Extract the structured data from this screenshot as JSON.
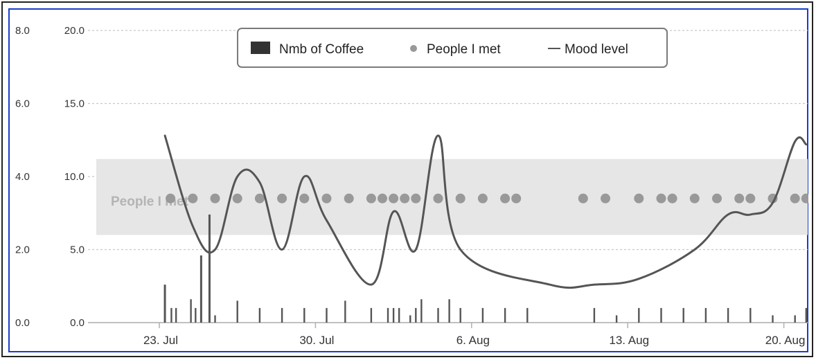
{
  "chart_data": {
    "type": "line",
    "title": "",
    "xlabel": "",
    "ylabel": "",
    "x_axis": {
      "type": "datetime",
      "range": [
        "2013-07-20",
        "2013-08-21"
      ],
      "tick_labels": [
        "23. Jul",
        "30. Jul",
        "6. Aug",
        "13. Aug",
        "20. Aug"
      ],
      "tick_dates": [
        "2013-07-23",
        "2013-07-30",
        "2013-08-06",
        "2013-08-13",
        "2013-08-20"
      ]
    },
    "y_axes": [
      {
        "id": "outer",
        "ticks": [
          "8.0",
          "6.0",
          "4.0",
          "2.0",
          "0.0"
        ],
        "range": [
          0,
          8
        ]
      },
      {
        "id": "inner",
        "ticks": [
          "20.0",
          "15.0",
          "10.0",
          "5.0",
          "0.0"
        ],
        "range": [
          0,
          20
        ]
      }
    ],
    "grid": true,
    "legend": {
      "placement": "top-center",
      "entries": [
        "Nmb of Coffee",
        "People I met",
        "Mood level"
      ]
    },
    "plot_band": {
      "label": "People I met",
      "from": 6,
      "to": 11.2
    },
    "colors": {
      "coffee": "#444444",
      "people": "#999999",
      "mood": "#555555",
      "band": "#e6e6e6",
      "frame": "#1a3cc8"
    },
    "series": [
      {
        "name": "Nmb of Coffee",
        "type": "column",
        "points": [
          [
            "2013-07-23T06:00",
            2.6
          ],
          [
            "2013-07-23T13:00",
            1.0
          ],
          [
            "2013-07-23T18:00",
            1.0
          ],
          [
            "2013-07-24T10:00",
            1.6
          ],
          [
            "2013-07-24T15:00",
            1.0
          ],
          [
            "2013-07-24T21:00",
            4.6
          ],
          [
            "2013-07-25T06:00",
            7.4
          ],
          [
            "2013-07-25T12:00",
            0.5
          ],
          [
            "2013-07-26T12:00",
            1.5
          ],
          [
            "2013-07-27T12:00",
            1.0
          ],
          [
            "2013-07-28T12:00",
            1.0
          ],
          [
            "2013-07-29T12:00",
            1.0
          ],
          [
            "2013-07-30T12:00",
            1.0
          ],
          [
            "2013-07-31T08:00",
            1.5
          ],
          [
            "2013-08-01T12:00",
            1.0
          ],
          [
            "2013-08-02T06:00",
            1.0
          ],
          [
            "2013-08-02T12:00",
            1.0
          ],
          [
            "2013-08-02T18:00",
            1.0
          ],
          [
            "2013-08-03T06:00",
            0.5
          ],
          [
            "2013-08-03T12:00",
            1.0
          ],
          [
            "2013-08-03T18:00",
            1.6
          ],
          [
            "2013-08-04T12:00",
            1.0
          ],
          [
            "2013-08-05T00:00",
            1.6
          ],
          [
            "2013-08-05T12:00",
            1.0
          ],
          [
            "2013-08-06T12:00",
            1.0
          ],
          [
            "2013-08-07T12:00",
            1.0
          ],
          [
            "2013-08-08T12:00",
            1.0
          ],
          [
            "2013-08-11T12:00",
            1.0
          ],
          [
            "2013-08-12T12:00",
            0.5
          ],
          [
            "2013-08-13T12:00",
            1.0
          ],
          [
            "2013-08-14T12:00",
            1.0
          ],
          [
            "2013-08-15T12:00",
            1.0
          ],
          [
            "2013-08-16T12:00",
            1.0
          ],
          [
            "2013-08-17T12:00",
            1.0
          ],
          [
            "2013-08-18T12:00",
            1.0
          ],
          [
            "2013-08-19T12:00",
            0.5
          ],
          [
            "2013-08-20T12:00",
            0.5
          ],
          [
            "2013-08-21T00:00",
            1.0
          ],
          [
            "2013-08-21T12:00",
            1.0
          ]
        ]
      },
      {
        "name": "People I met",
        "type": "scatter",
        "y": 8.5,
        "dates": [
          "2013-07-23T12:00",
          "2013-07-24T12:00",
          "2013-07-25T12:00",
          "2013-07-26T12:00",
          "2013-07-27T12:00",
          "2013-07-28T12:00",
          "2013-07-29T12:00",
          "2013-07-30T12:00",
          "2013-07-31T12:00",
          "2013-08-01T12:00",
          "2013-08-02T00:00",
          "2013-08-02T12:00",
          "2013-08-03T00:00",
          "2013-08-03T12:00",
          "2013-08-04T12:00",
          "2013-08-05T12:00",
          "2013-08-06T12:00",
          "2013-08-07T12:00",
          "2013-08-08T00:00",
          "2013-08-11T00:00",
          "2013-08-12T00:00",
          "2013-08-13T12:00",
          "2013-08-14T12:00",
          "2013-08-15T00:00",
          "2013-08-16T00:00",
          "2013-08-17T00:00",
          "2013-08-18T00:00",
          "2013-08-18T12:00",
          "2013-08-19T12:00",
          "2013-08-20T12:00",
          "2013-08-21T00:00"
        ]
      },
      {
        "name": "Mood level",
        "type": "spline",
        "points": [
          [
            "2013-07-23T06:00",
            12.8
          ],
          [
            "2013-07-24T12:00",
            6.6
          ],
          [
            "2013-07-25T12:00",
            5.0
          ],
          [
            "2013-07-26T12:00",
            10.0
          ],
          [
            "2013-07-27T12:00",
            9.6
          ],
          [
            "2013-07-28T12:00",
            5.0
          ],
          [
            "2013-07-29T12:00",
            10.0
          ],
          [
            "2013-07-30T12:00",
            7.0
          ],
          [
            "2013-08-01T12:00",
            2.6
          ],
          [
            "2013-08-02T12:00",
            7.6
          ],
          [
            "2013-08-03T12:00",
            5.0
          ],
          [
            "2013-08-04T12:00",
            12.8
          ],
          [
            "2013-08-05T12:00",
            5.0
          ],
          [
            "2013-08-09T12:00",
            2.6
          ],
          [
            "2013-08-11T12:00",
            2.6
          ],
          [
            "2013-08-13T12:00",
            3.0
          ],
          [
            "2013-08-16T00:00",
            5.0
          ],
          [
            "2013-08-17T12:00",
            7.4
          ],
          [
            "2013-08-18T12:00",
            7.4
          ],
          [
            "2013-08-19T12:00",
            8.2
          ],
          [
            "2013-08-20T12:00",
            12.4
          ],
          [
            "2013-08-21T00:00",
            12.2
          ]
        ]
      }
    ]
  }
}
